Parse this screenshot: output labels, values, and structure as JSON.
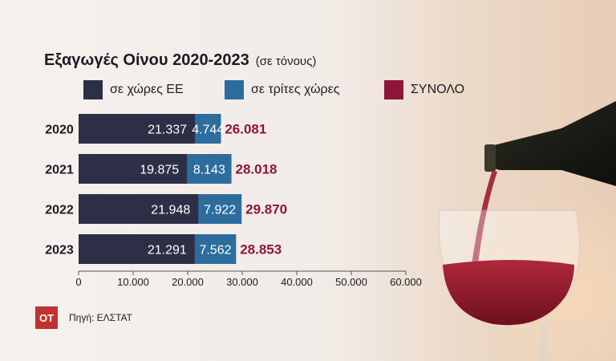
{
  "title": "Εξαγωγές Οίνου 2020-2023",
  "subtitle": "(σε τόνους)",
  "source": "Πηγή: ΕΛΣΤΑΤ",
  "logo": "ΟΤ",
  "colors": {
    "eu": "#2c2f45",
    "third": "#2c6d9e",
    "total": "#8e1538",
    "total_label": "#8e1538",
    "logo_bg": "#c0312f"
  },
  "legend": [
    {
      "label": "σε χώρες ΕΕ",
      "color": "#2c2f45"
    },
    {
      "label": "σε τρίτες χώρες",
      "color": "#2c6d9e"
    },
    {
      "label": "ΣΥΝΟΛΟ",
      "color": "#8e1538"
    }
  ],
  "chart_data": {
    "type": "bar",
    "orientation": "horizontal",
    "categories": [
      "2020",
      "2021",
      "2022",
      "2023"
    ],
    "series": [
      {
        "name": "σε χώρες ΕΕ",
        "values": [
          21337,
          19875,
          21948,
          21291
        ],
        "labels": [
          "21.337",
          "19.875",
          "21.948",
          "21.291"
        ]
      },
      {
        "name": "σε τρίτες χώρες",
        "values": [
          4744,
          8143,
          7922,
          7562
        ],
        "labels": [
          "4.744",
          "8.143",
          "7.922",
          "7.562"
        ]
      },
      {
        "name": "ΣΥΝΟΛΟ",
        "values": [
          26081,
          28018,
          29870,
          28853
        ],
        "labels": [
          "26.081",
          "28.018",
          "29.870",
          "28.853"
        ]
      }
    ],
    "xlim": [
      0,
      60000
    ],
    "xticks": [
      0,
      10000,
      20000,
      30000,
      40000,
      50000,
      60000
    ],
    "xtick_labels": [
      "0",
      "10.000",
      "20.000",
      "30.000",
      "40.000",
      "50.000",
      "60.000"
    ],
    "grid": false,
    "legend_position": "top"
  }
}
